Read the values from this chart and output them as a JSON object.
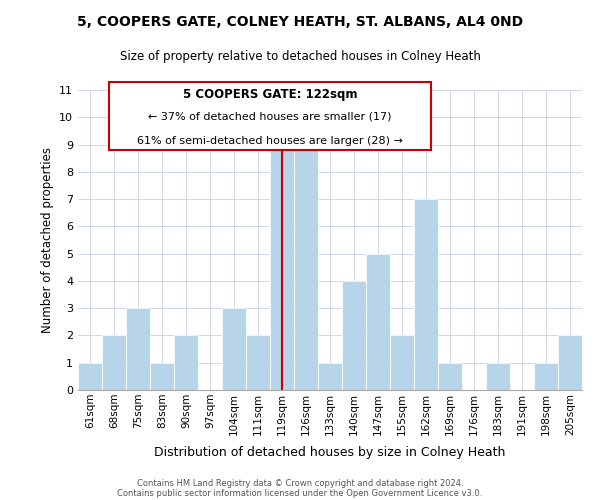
{
  "title": "5, COOPERS GATE, COLNEY HEATH, ST. ALBANS, AL4 0ND",
  "subtitle": "Size of property relative to detached houses in Colney Heath",
  "xlabel": "Distribution of detached houses by size in Colney Heath",
  "ylabel": "Number of detached properties",
  "categories": [
    "61sqm",
    "68sqm",
    "75sqm",
    "83sqm",
    "90sqm",
    "97sqm",
    "104sqm",
    "111sqm",
    "119sqm",
    "126sqm",
    "133sqm",
    "140sqm",
    "147sqm",
    "155sqm",
    "162sqm",
    "169sqm",
    "176sqm",
    "183sqm",
    "191sqm",
    "198sqm",
    "205sqm"
  ],
  "values": [
    1,
    2,
    3,
    1,
    2,
    0,
    3,
    2,
    9,
    9,
    1,
    4,
    5,
    2,
    7,
    1,
    0,
    1,
    0,
    1,
    2
  ],
  "bar_color": "#b8d4e8",
  "bar_edge_color": "#ffffff",
  "reference_line_index": 8,
  "reference_line_color": "#cc0000",
  "ylim": [
    0,
    11
  ],
  "yticks": [
    0,
    1,
    2,
    3,
    4,
    5,
    6,
    7,
    8,
    9,
    10,
    11
  ],
  "annotation_title": "5 COOPERS GATE: 122sqm",
  "annotation_line1": "← 37% of detached houses are smaller (17)",
  "annotation_line2": "61% of semi-detached houses are larger (28) →",
  "annotation_box_color": "#ffffff",
  "annotation_box_edge": "#cc0000",
  "footer_line1": "Contains HM Land Registry data © Crown copyright and database right 2024.",
  "footer_line2": "Contains public sector information licensed under the Open Government Licence v3.0.",
  "background_color": "#ffffff",
  "grid_color": "#d0d8e8"
}
